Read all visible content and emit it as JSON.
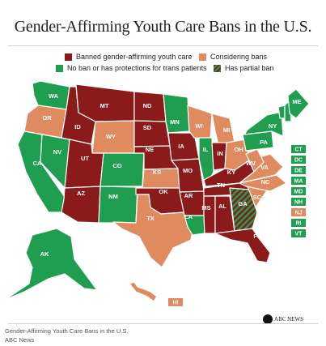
{
  "title": "Gender-Affirming Youth Care Bans in the U.S.",
  "legend": [
    {
      "label": "Banned gender-affirming youth care",
      "color": "#8b1a1a"
    },
    {
      "label": "Considering bans",
      "color": "#e08a5f"
    },
    {
      "label": "No ban or has protections for trans patients",
      "color": "#1e9e4e"
    },
    {
      "label": "Has partial ban",
      "pattern": "hatched"
    }
  ],
  "colors": {
    "banned": "#8b1a1a",
    "considering": "#e08a5f",
    "protected": "#1e9e4e",
    "partial": "hatched"
  },
  "states": [
    {
      "abbr": "WA",
      "status": "protected"
    },
    {
      "abbr": "OR",
      "status": "considering"
    },
    {
      "abbr": "CA",
      "status": "protected"
    },
    {
      "abbr": "NV",
      "status": "protected"
    },
    {
      "abbr": "ID",
      "status": "banned"
    },
    {
      "abbr": "MT",
      "status": "banned"
    },
    {
      "abbr": "WY",
      "status": "considering"
    },
    {
      "abbr": "UT",
      "status": "banned"
    },
    {
      "abbr": "AZ",
      "status": "banned"
    },
    {
      "abbr": "CO",
      "status": "protected"
    },
    {
      "abbr": "NM",
      "status": "protected"
    },
    {
      "abbr": "ND",
      "status": "banned"
    },
    {
      "abbr": "SD",
      "status": "banned"
    },
    {
      "abbr": "NE",
      "status": "banned"
    },
    {
      "abbr": "KS",
      "status": "considering"
    },
    {
      "abbr": "OK",
      "status": "banned"
    },
    {
      "abbr": "TX",
      "status": "considering"
    },
    {
      "abbr": "MN",
      "status": "protected"
    },
    {
      "abbr": "IA",
      "status": "banned"
    },
    {
      "abbr": "MO",
      "status": "banned"
    },
    {
      "abbr": "AR",
      "status": "banned"
    },
    {
      "abbr": "LA",
      "status": "protected"
    },
    {
      "abbr": "WI",
      "status": "considering"
    },
    {
      "abbr": "IL",
      "status": "protected"
    },
    {
      "abbr": "MI",
      "status": "considering"
    },
    {
      "abbr": "IN",
      "status": "banned"
    },
    {
      "abbr": "OH",
      "status": "considering"
    },
    {
      "abbr": "KY",
      "status": "banned"
    },
    {
      "abbr": "TN",
      "status": "banned"
    },
    {
      "abbr": "MS",
      "status": "banned"
    },
    {
      "abbr": "AL",
      "status": "banned"
    },
    {
      "abbr": "GA",
      "status": "partial"
    },
    {
      "abbr": "FL",
      "status": "banned"
    },
    {
      "abbr": "SC",
      "status": "considering"
    },
    {
      "abbr": "NC",
      "status": "considering"
    },
    {
      "abbr": "VA",
      "status": "considering"
    },
    {
      "abbr": "WV",
      "status": "considering"
    },
    {
      "abbr": "PA",
      "status": "protected"
    },
    {
      "abbr": "NY",
      "status": "protected"
    },
    {
      "abbr": "VT",
      "status": "protected"
    },
    {
      "abbr": "NH",
      "status": "protected"
    },
    {
      "abbr": "ME",
      "status": "protected"
    },
    {
      "abbr": "AK",
      "status": "protected"
    },
    {
      "abbr": "HI",
      "status": "considering"
    }
  ],
  "small_states": [
    {
      "abbr": "CT",
      "status": "protected"
    },
    {
      "abbr": "DC",
      "status": "protected"
    },
    {
      "abbr": "DE",
      "status": "protected"
    },
    {
      "abbr": "MA",
      "status": "protected"
    },
    {
      "abbr": "MD",
      "status": "protected"
    },
    {
      "abbr": "NH",
      "status": "protected"
    },
    {
      "abbr": "NJ",
      "status": "considering"
    },
    {
      "abbr": "RI",
      "status": "protected"
    },
    {
      "abbr": "VT",
      "status": "protected"
    }
  ],
  "caption": {
    "line1": "Gender-Affirming Youth Care Bans in the U.S.",
    "line2": "ABC News"
  },
  "logo": "ABC NEWS"
}
